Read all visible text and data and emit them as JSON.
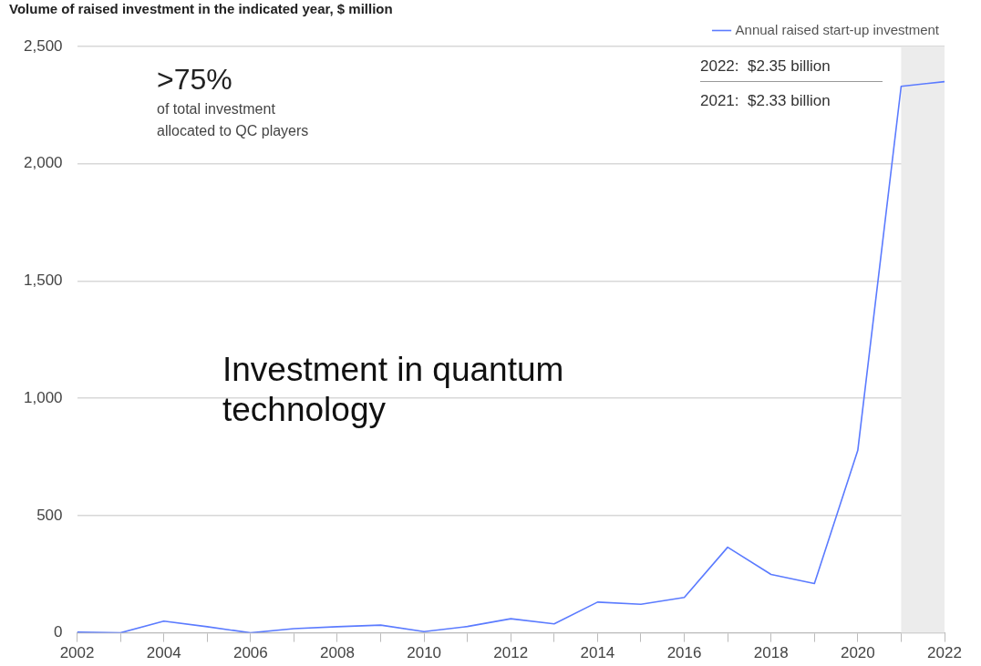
{
  "chart_data": {
    "type": "line",
    "title": "Volume of raised investment in the indicated year, $ million",
    "x": [
      2002,
      2003,
      2004,
      2005,
      2006,
      2007,
      2008,
      2009,
      2010,
      2011,
      2012,
      2013,
      2014,
      2015,
      2016,
      2017,
      2018,
      2019,
      2020,
      2021,
      2022
    ],
    "series": [
      {
        "name": "Annual raised start-up investment",
        "color": "#5b7bff",
        "values": [
          3,
          0,
          50,
          26,
          0,
          18,
          26,
          33,
          5,
          27,
          60,
          38,
          131,
          122,
          151,
          365,
          249,
          210,
          778,
          2330,
          2350
        ]
      }
    ],
    "xlim": [
      2002,
      2022
    ],
    "xticks": [
      2002,
      {
        "value": 2003,
        "label": null
      },
      2004,
      {
        "value": 2005,
        "label": null
      },
      2006,
      {
        "value": 2007,
        "label": null
      },
      2008,
      {
        "value": 2009,
        "label": null
      },
      2010,
      {
        "value": 2011,
        "label": null
      },
      2012,
      {
        "value": 2013,
        "label": null
      },
      2014,
      {
        "value": 2015,
        "label": null
      },
      2016,
      {
        "value": 2017,
        "label": null
      },
      2018,
      {
        "value": 2019,
        "label": null
      },
      2020,
      {
        "value": 2021,
        "label": null
      },
      2022
    ],
    "ylim": [
      0,
      2500
    ],
    "yticks": [
      0,
      500,
      {
        "value": 1000,
        "label": "1,000"
      },
      {
        "value": 1500,
        "label": "1,500"
      },
      {
        "value": 2000,
        "label": "2,000"
      },
      {
        "value": 2500,
        "label": "2,500"
      }
    ],
    "bands": [
      {
        "axis": "x",
        "from": 2021,
        "to": 2022,
        "color": "#ececec"
      }
    ],
    "annotations": [
      ">75%",
      "of total investment",
      "allocated to QC players",
      "2022:  $2.35 billion",
      "2021:  $2.33 billion",
      "Investment in quantum technology"
    ],
    "grid": "y",
    "legend": "top right",
    "marker": "none",
    "line_style": "solid"
  }
}
